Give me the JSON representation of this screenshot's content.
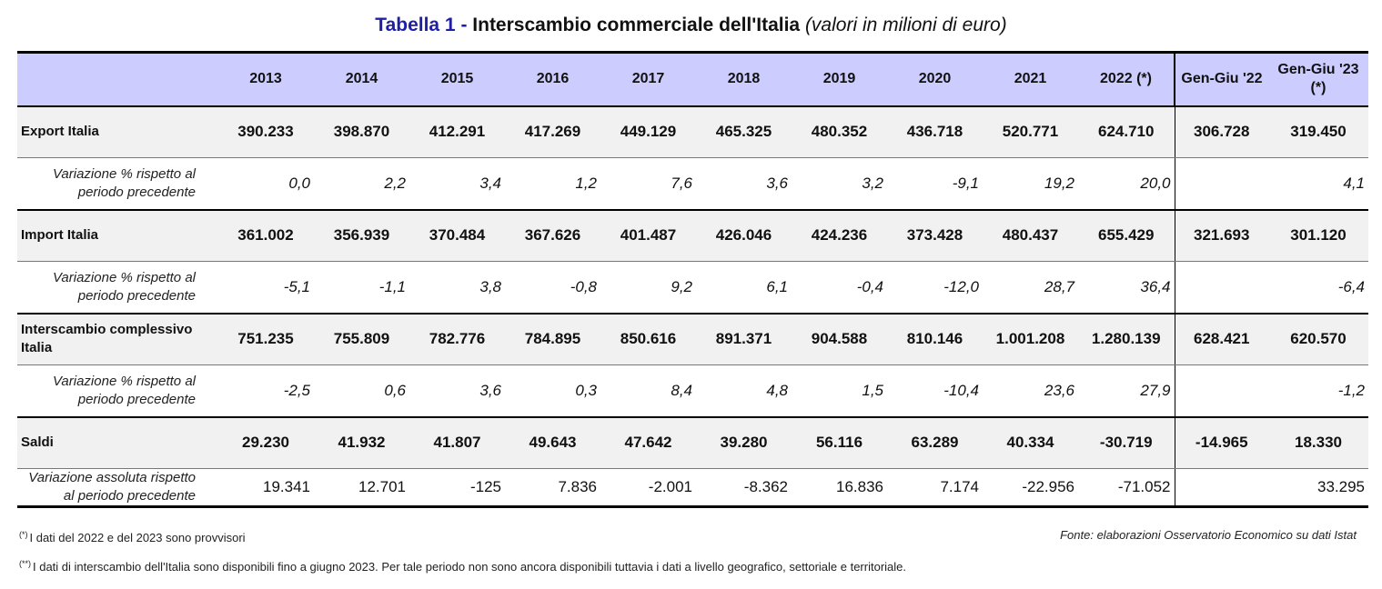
{
  "title": {
    "label": "Tabella 1 - ",
    "main": "Interscambio commerciale dell'Italia",
    "unit": "(valori in milioni di euro)"
  },
  "headers": [
    "2013",
    "2014",
    "2015",
    "2016",
    "2017",
    "2018",
    "2019",
    "2020",
    "2021",
    "2022 (*)",
    "Gen-Giu '22",
    "Gen-Giu '23 (*)"
  ],
  "rows": {
    "export": {
      "label": "Export Italia",
      "values": [
        "390.233",
        "398.870",
        "412.291",
        "417.269",
        "449.129",
        "465.325",
        "480.352",
        "436.718",
        "520.771",
        "624.710",
        "306.728",
        "319.450"
      ]
    },
    "export_var": {
      "label": "Variazione % rispetto al periodo precedente",
      "values": [
        "0,0",
        "2,2",
        "3,4",
        "1,2",
        "7,6",
        "3,6",
        "3,2",
        "-9,1",
        "19,2",
        "20,0",
        "",
        "4,1"
      ]
    },
    "import": {
      "label": "Import Italia",
      "values": [
        "361.002",
        "356.939",
        "370.484",
        "367.626",
        "401.487",
        "426.046",
        "424.236",
        "373.428",
        "480.437",
        "655.429",
        "321.693",
        "301.120"
      ]
    },
    "import_var": {
      "label": "Variazione % rispetto al periodo precedente",
      "values": [
        "-5,1",
        "-1,1",
        "3,8",
        "-0,8",
        "9,2",
        "6,1",
        "-0,4",
        "-12,0",
        "28,7",
        "36,4",
        "",
        "-6,4"
      ]
    },
    "total": {
      "label": "Interscambio complessivo Italia",
      "values": [
        "751.235",
        "755.809",
        "782.776",
        "784.895",
        "850.616",
        "891.371",
        "904.588",
        "810.146",
        "1.001.208",
        "1.280.139",
        "628.421",
        "620.570"
      ]
    },
    "total_var": {
      "label": "Variazione % rispetto al periodo precedente",
      "values": [
        "-2,5",
        "0,6",
        "3,6",
        "0,3",
        "8,4",
        "4,8",
        "1,5",
        "-10,4",
        "23,6",
        "27,9",
        "",
        "-1,2"
      ]
    },
    "saldi": {
      "label": "Saldi",
      "values": [
        "29.230",
        "41.932",
        "41.807",
        "49.643",
        "47.642",
        "39.280",
        "56.116",
        "63.289",
        "40.334",
        "-30.719",
        "-14.965",
        "18.330"
      ]
    },
    "saldi_var": {
      "label": "Variazione assoluta rispetto al periodo precedente",
      "values": [
        "19.341",
        "12.701",
        "-125",
        "7.836",
        "-2.001",
        "-8.362",
        "16.836",
        "7.174",
        "-22.956",
        "-71.052",
        "",
        "33.295"
      ]
    }
  },
  "footnotes": {
    "note1_mark": "(*)",
    "note1_text": "I dati del 2022 e del 2023 sono provvisori",
    "note2_mark": "(**)",
    "note2_text": "I dati di interscambio dell'Italia sono disponibili fino a giugno 2023. Per tale periodo non sono ancora disponibili tuttavia i dati a livello geografico, settoriale e territoriale.",
    "source": "Fonte: elaborazioni Osservatorio Economico su dati Istat"
  }
}
